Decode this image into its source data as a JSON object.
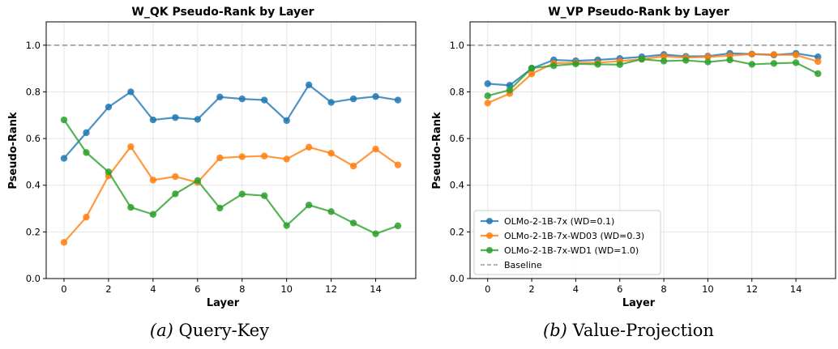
{
  "chart_data": [
    {
      "type": "line",
      "title": "W_QK Pseudo-Rank by Layer",
      "xlabel": "Layer",
      "ylabel": "Pseudo-Rank",
      "xlim": [
        -0.8,
        15.8
      ],
      "ylim": [
        0.0,
        1.1
      ],
      "xticks": [
        0,
        2,
        4,
        6,
        8,
        10,
        12,
        14
      ],
      "yticks": [
        0.0,
        0.2,
        0.4,
        0.6,
        0.8,
        1.0
      ],
      "grid": true,
      "legend": null,
      "x": [
        0,
        1,
        2,
        3,
        4,
        5,
        6,
        7,
        8,
        9,
        10,
        11,
        12,
        13,
        14,
        15
      ],
      "series": [
        {
          "name": "OLMo-2-1B-7x (WD=0.1)",
          "color": "#1f77b4",
          "values": [
            0.515,
            0.625,
            0.735,
            0.8,
            0.68,
            0.69,
            0.682,
            0.778,
            0.77,
            0.765,
            0.677,
            0.83,
            0.755,
            0.77,
            0.78,
            0.765
          ]
        },
        {
          "name": "OLMo-2-1B-7x-WD03 (WD=0.3)",
          "color": "#ff7f0e",
          "values": [
            0.155,
            0.263,
            0.44,
            0.565,
            0.422,
            0.437,
            0.412,
            0.517,
            0.522,
            0.525,
            0.512,
            0.563,
            0.537,
            0.482,
            0.555,
            0.487
          ]
        },
        {
          "name": "OLMo-2-1B-7x-WD1 (WD=1.0)",
          "color": "#2ca02c",
          "values": [
            0.68,
            0.54,
            0.457,
            0.305,
            0.275,
            0.363,
            0.42,
            0.302,
            0.362,
            0.355,
            0.227,
            0.315,
            0.287,
            0.238,
            0.192,
            0.226
          ]
        }
      ],
      "baseline": {
        "name": "Baseline",
        "value": 1.0,
        "color": "#999999"
      }
    },
    {
      "type": "line",
      "title": "W_VP Pseudo-Rank by Layer",
      "xlabel": "Layer",
      "ylabel": "Pseudo-Rank",
      "xlim": [
        -0.8,
        15.8
      ],
      "ylim": [
        0.0,
        1.1
      ],
      "xticks": [
        0,
        2,
        4,
        6,
        8,
        10,
        12,
        14
      ],
      "yticks": [
        0.0,
        0.2,
        0.4,
        0.6,
        0.8,
        1.0
      ],
      "grid": true,
      "legend": "lower-left",
      "x": [
        0,
        1,
        2,
        3,
        4,
        5,
        6,
        7,
        8,
        9,
        10,
        11,
        12,
        13,
        14,
        15
      ],
      "series": [
        {
          "name": "OLMo-2-1B-7x (WD=0.1)",
          "color": "#1f77b4",
          "values": [
            0.835,
            0.828,
            0.9,
            0.937,
            0.933,
            0.937,
            0.943,
            0.95,
            0.96,
            0.952,
            0.953,
            0.965,
            0.962,
            0.958,
            0.965,
            0.95
          ]
        },
        {
          "name": "OLMo-2-1B-7x-WD03 (WD=0.3)",
          "color": "#ff7f0e",
          "values": [
            0.752,
            0.793,
            0.877,
            0.923,
            0.925,
            0.925,
            0.932,
            0.94,
            0.952,
            0.947,
            0.95,
            0.955,
            0.962,
            0.96,
            0.958,
            0.93
          ]
        },
        {
          "name": "OLMo-2-1B-7x-WD1 (WD=1.0)",
          "color": "#2ca02c",
          "values": [
            0.783,
            0.808,
            0.902,
            0.912,
            0.92,
            0.918,
            0.917,
            0.94,
            0.932,
            0.935,
            0.928,
            0.937,
            0.918,
            0.922,
            0.925,
            0.878
          ]
        }
      ],
      "baseline": {
        "name": "Baseline",
        "value": 1.0,
        "color": "#999999"
      }
    }
  ],
  "captions": [
    {
      "prefix": "(a)",
      "text": "Query-Key"
    },
    {
      "prefix": "(b)",
      "text": "Value-Projection"
    }
  ]
}
